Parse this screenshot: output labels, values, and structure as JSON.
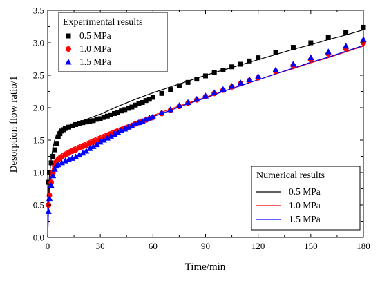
{
  "chart_data": {
    "type": "scatter",
    "xlabel": "Time/min",
    "ylabel": "Desorption flow ratio/1",
    "xlim": [
      0,
      180
    ],
    "ylim": [
      0,
      3.5
    ],
    "xticks": [
      0,
      30,
      60,
      90,
      120,
      150,
      180
    ],
    "yticks": [
      0.0,
      0.5,
      1.0,
      1.5,
      2.0,
      2.5,
      3.0,
      3.5
    ],
    "xtick_labels": [
      "0",
      "30",
      "60",
      "90",
      "120",
      "150",
      "180"
    ],
    "ytick_labels": [
      "0.0",
      "0.5",
      "1.0",
      "1.5",
      "2.0",
      "2.5",
      "3.0",
      "3.5"
    ],
    "grid": false,
    "legends": [
      {
        "title": "Experimental results",
        "placement": "top-left",
        "entries": [
          {
            "label": "0.5 MPa",
            "marker": "square",
            "color": "#000000"
          },
          {
            "label": "1.0 MPa",
            "marker": "circle",
            "color": "#ff0000"
          },
          {
            "label": "1.5 MPa",
            "marker": "triangle",
            "color": "#0000ff"
          }
        ]
      },
      {
        "title": "Numerical results",
        "placement": "bottom-right",
        "entries": [
          {
            "label": "0.5 MPa",
            "marker": "line",
            "color": "#000000"
          },
          {
            "label": "1.0 MPa",
            "marker": "line",
            "color": "#ff0000"
          },
          {
            "label": "1.5 MPa",
            "marker": "line",
            "color": "#0000ff"
          }
        ]
      }
    ],
    "experimental_series": [
      {
        "name": "0.5 MPa",
        "color": "#000000",
        "marker": "square",
        "points": [
          [
            0.5,
            0.85
          ],
          [
            1,
            1.0
          ],
          [
            2,
            1.15
          ],
          [
            3,
            1.25
          ],
          [
            4,
            1.35
          ],
          [
            5,
            1.45
          ],
          [
            6,
            1.55
          ],
          [
            7,
            1.6
          ],
          [
            8,
            1.64
          ],
          [
            9,
            1.66
          ],
          [
            10,
            1.68
          ],
          [
            12,
            1.7
          ],
          [
            14,
            1.72
          ],
          [
            16,
            1.74
          ],
          [
            18,
            1.75
          ],
          [
            20,
            1.77
          ],
          [
            22,
            1.78
          ],
          [
            24,
            1.79
          ],
          [
            26,
            1.8
          ],
          [
            28,
            1.82
          ],
          [
            30,
            1.83
          ],
          [
            32,
            1.85
          ],
          [
            34,
            1.87
          ],
          [
            36,
            1.89
          ],
          [
            38,
            1.91
          ],
          [
            40,
            1.93
          ],
          [
            42,
            1.95
          ],
          [
            44,
            1.97
          ],
          [
            46,
            1.99
          ],
          [
            48,
            2.01
          ],
          [
            50,
            2.04
          ],
          [
            52,
            2.06
          ],
          [
            54,
            2.08
          ],
          [
            56,
            2.11
          ],
          [
            58,
            2.13
          ],
          [
            60,
            2.16
          ],
          [
            65,
            2.22
          ],
          [
            70,
            2.28
          ],
          [
            75,
            2.34
          ],
          [
            80,
            2.39
          ],
          [
            85,
            2.44
          ],
          [
            90,
            2.49
          ],
          [
            95,
            2.54
          ],
          [
            100,
            2.58
          ],
          [
            105,
            2.63
          ],
          [
            110,
            2.67
          ],
          [
            115,
            2.72
          ],
          [
            120,
            2.77
          ],
          [
            130,
            2.85
          ],
          [
            140,
            2.93
          ],
          [
            150,
            3.0
          ],
          [
            160,
            3.08
          ],
          [
            170,
            3.16
          ],
          [
            180,
            3.24
          ]
        ]
      },
      {
        "name": "1.0 MPa",
        "color": "#ff0000",
        "marker": "circle",
        "points": [
          [
            0.5,
            0.5
          ],
          [
            1,
            0.65
          ],
          [
            2,
            0.85
          ],
          [
            3,
            1.0
          ],
          [
            4,
            1.1
          ],
          [
            5,
            1.17
          ],
          [
            6,
            1.2
          ],
          [
            8,
            1.24
          ],
          [
            10,
            1.27
          ],
          [
            12,
            1.3
          ],
          [
            14,
            1.33
          ],
          [
            16,
            1.35
          ],
          [
            18,
            1.38
          ],
          [
            20,
            1.4
          ],
          [
            22,
            1.42
          ],
          [
            24,
            1.45
          ],
          [
            26,
            1.47
          ],
          [
            28,
            1.49
          ],
          [
            30,
            1.52
          ],
          [
            32,
            1.54
          ],
          [
            34,
            1.57
          ],
          [
            36,
            1.59
          ],
          [
            38,
            1.61
          ],
          [
            40,
            1.63
          ],
          [
            42,
            1.66
          ],
          [
            44,
            1.68
          ],
          [
            46,
            1.7
          ],
          [
            48,
            1.72
          ],
          [
            50,
            1.75
          ],
          [
            52,
            1.77
          ],
          [
            54,
            1.79
          ],
          [
            56,
            1.81
          ],
          [
            58,
            1.83
          ],
          [
            60,
            1.85
          ],
          [
            65,
            1.91
          ],
          [
            70,
            1.96
          ],
          [
            75,
            2.02
          ],
          [
            80,
            2.07
          ],
          [
            85,
            2.12
          ],
          [
            90,
            2.17
          ],
          [
            95,
            2.22
          ],
          [
            100,
            2.27
          ],
          [
            105,
            2.32
          ],
          [
            110,
            2.37
          ],
          [
            115,
            2.42
          ],
          [
            120,
            2.46
          ],
          [
            130,
            2.56
          ],
          [
            140,
            2.65
          ],
          [
            150,
            2.74
          ],
          [
            160,
            2.83
          ],
          [
            170,
            2.91
          ],
          [
            180,
            3.0
          ]
        ]
      },
      {
        "name": "1.5 MPa",
        "color": "#0000ff",
        "marker": "triangle",
        "points": [
          [
            0.5,
            0.4
          ],
          [
            1,
            0.6
          ],
          [
            2,
            0.8
          ],
          [
            3,
            0.95
          ],
          [
            4,
            1.05
          ],
          [
            5,
            1.1
          ],
          [
            6,
            1.12
          ],
          [
            8,
            1.15
          ],
          [
            10,
            1.18
          ],
          [
            12,
            1.2
          ],
          [
            14,
            1.22
          ],
          [
            16,
            1.24
          ],
          [
            18,
            1.27
          ],
          [
            20,
            1.3
          ],
          [
            22,
            1.33
          ],
          [
            24,
            1.37
          ],
          [
            26,
            1.4
          ],
          [
            28,
            1.43
          ],
          [
            30,
            1.47
          ],
          [
            32,
            1.5
          ],
          [
            34,
            1.53
          ],
          [
            36,
            1.56
          ],
          [
            38,
            1.59
          ],
          [
            40,
            1.62
          ],
          [
            42,
            1.65
          ],
          [
            44,
            1.67
          ],
          [
            46,
            1.7
          ],
          [
            48,
            1.72
          ],
          [
            50,
            1.75
          ],
          [
            52,
            1.77
          ],
          [
            54,
            1.79
          ],
          [
            56,
            1.82
          ],
          [
            58,
            1.84
          ],
          [
            60,
            1.86
          ],
          [
            65,
            1.92
          ],
          [
            70,
            1.97
          ],
          [
            75,
            2.03
          ],
          [
            80,
            2.08
          ],
          [
            85,
            2.13
          ],
          [
            90,
            2.18
          ],
          [
            95,
            2.23
          ],
          [
            100,
            2.28
          ],
          [
            105,
            2.33
          ],
          [
            110,
            2.38
          ],
          [
            115,
            2.43
          ],
          [
            120,
            2.48
          ],
          [
            130,
            2.58
          ],
          [
            140,
            2.67
          ],
          [
            150,
            2.77
          ],
          [
            160,
            2.86
          ],
          [
            170,
            2.95
          ],
          [
            180,
            3.05
          ]
        ]
      }
    ],
    "numerical_series": [
      {
        "name": "0.5 MPa",
        "color": "#000000",
        "points": [
          [
            0,
            0.0
          ],
          [
            0.5,
            0.7
          ],
          [
            1,
            0.95
          ],
          [
            2,
            1.2
          ],
          [
            3,
            1.38
          ],
          [
            4,
            1.5
          ],
          [
            5,
            1.58
          ],
          [
            6,
            1.63
          ],
          [
            7,
            1.66
          ],
          [
            8,
            1.68
          ],
          [
            10,
            1.71
          ],
          [
            15,
            1.76
          ],
          [
            20,
            1.8
          ],
          [
            25,
            1.85
          ],
          [
            30,
            1.9
          ],
          [
            40,
            2.02
          ],
          [
            50,
            2.13
          ],
          [
            60,
            2.23
          ],
          [
            70,
            2.32
          ],
          [
            80,
            2.41
          ],
          [
            90,
            2.5
          ],
          [
            100,
            2.58
          ],
          [
            110,
            2.66
          ],
          [
            120,
            2.74
          ],
          [
            130,
            2.82
          ],
          [
            140,
            2.9
          ],
          [
            150,
            2.97
          ],
          [
            160,
            3.05
          ],
          [
            170,
            3.12
          ],
          [
            180,
            3.2
          ]
        ]
      },
      {
        "name": "1.0 MPa",
        "color": "#ff0000",
        "points": [
          [
            0,
            0.0
          ],
          [
            0.5,
            0.5
          ],
          [
            1,
            0.75
          ],
          [
            2,
            0.98
          ],
          [
            3,
            1.1
          ],
          [
            4,
            1.17
          ],
          [
            5,
            1.22
          ],
          [
            6,
            1.25
          ],
          [
            8,
            1.29
          ],
          [
            10,
            1.32
          ],
          [
            15,
            1.39
          ],
          [
            20,
            1.45
          ],
          [
            25,
            1.51
          ],
          [
            30,
            1.57
          ],
          [
            40,
            1.68
          ],
          [
            50,
            1.78
          ],
          [
            60,
            1.88
          ],
          [
            70,
            1.98
          ],
          [
            80,
            2.07
          ],
          [
            90,
            2.16
          ],
          [
            100,
            2.25
          ],
          [
            110,
            2.34
          ],
          [
            120,
            2.43
          ],
          [
            130,
            2.52
          ],
          [
            140,
            2.6
          ],
          [
            150,
            2.69
          ],
          [
            160,
            2.77
          ],
          [
            170,
            2.86
          ],
          [
            180,
            2.95
          ]
        ]
      },
      {
        "name": "1.5 MPa",
        "color": "#0000ff",
        "points": [
          [
            0,
            0.0
          ],
          [
            0.5,
            0.45
          ],
          [
            1,
            0.7
          ],
          [
            2,
            0.93
          ],
          [
            3,
            1.05
          ],
          [
            4,
            1.12
          ],
          [
            5,
            1.17
          ],
          [
            6,
            1.2
          ],
          [
            8,
            1.24
          ],
          [
            10,
            1.27
          ],
          [
            15,
            1.34
          ],
          [
            20,
            1.4
          ],
          [
            25,
            1.47
          ],
          [
            30,
            1.53
          ],
          [
            40,
            1.65
          ],
          [
            50,
            1.76
          ],
          [
            60,
            1.86
          ],
          [
            70,
            1.96
          ],
          [
            80,
            2.06
          ],
          [
            90,
            2.15
          ],
          [
            100,
            2.25
          ],
          [
            110,
            2.34
          ],
          [
            120,
            2.43
          ],
          [
            130,
            2.52
          ],
          [
            140,
            2.61
          ],
          [
            150,
            2.7
          ],
          [
            160,
            2.78
          ],
          [
            170,
            2.87
          ],
          [
            180,
            2.96
          ]
        ]
      }
    ]
  }
}
